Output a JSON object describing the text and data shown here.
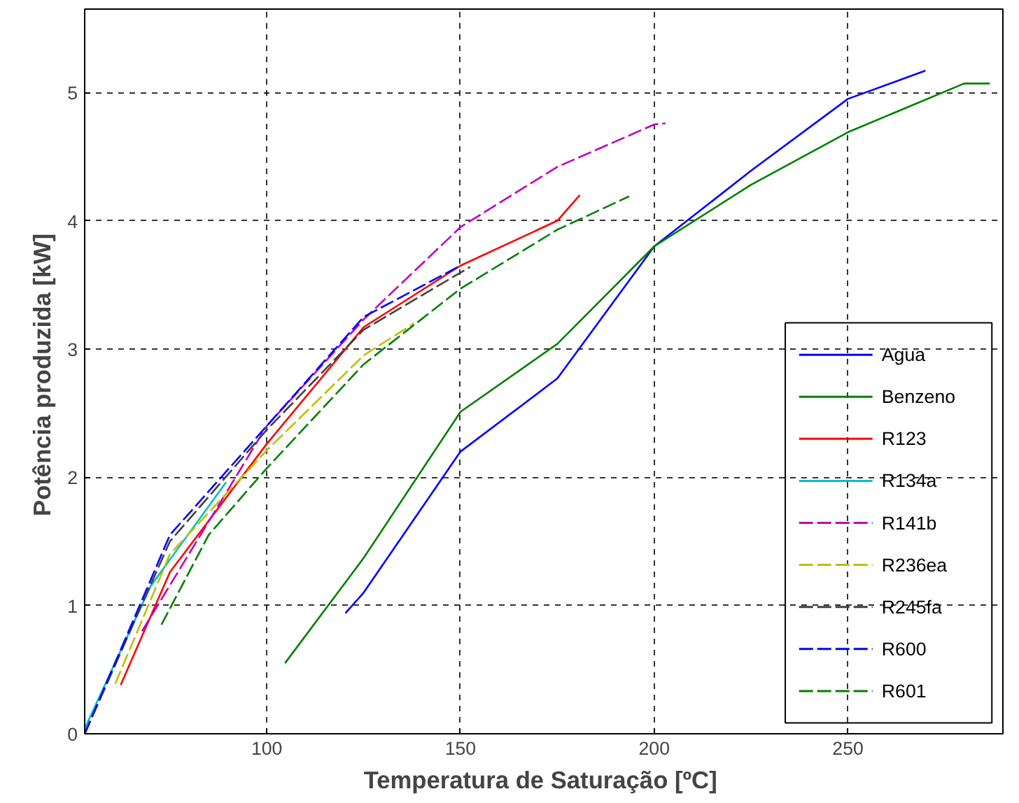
{
  "chart_data": {
    "type": "line",
    "xlabel": "Temperatura de Saturação  [ºC]",
    "ylabel": "Potência produzida  [kW]",
    "xlim": [
      53,
      290
    ],
    "ylim": [
      0,
      5.65
    ],
    "xticks": [
      100,
      150,
      200,
      250
    ],
    "yticks": [
      0,
      1,
      2,
      3,
      4,
      5
    ],
    "grid": true,
    "legend": "bottom right",
    "series": [
      {
        "name": "Agua",
        "color": "#0000ff",
        "line_style": "solid",
        "x": [
          120.3,
          125,
          150,
          175,
          200,
          225,
          250,
          270
        ],
        "values": [
          0.94,
          1.1,
          2.2,
          2.77,
          3.8,
          4.39,
          4.95,
          5.17
        ]
      },
      {
        "name": "Benzeno",
        "color": "#008000",
        "line_style": "solid",
        "x": [
          104.7,
          125,
          150,
          175,
          200,
          225,
          250,
          280,
          286.6
        ],
        "values": [
          0.55,
          1.37,
          2.51,
          3.04,
          3.8,
          4.28,
          4.69,
          5.07,
          5.07
        ]
      },
      {
        "name": "R123",
        "color": "#ff0000",
        "line_style": "solid",
        "x": [
          62.3,
          75,
          100,
          125,
          150,
          175,
          180.8
        ],
        "values": [
          0.38,
          1.26,
          2.26,
          3.17,
          3.65,
          4.0,
          4.2
        ]
      },
      {
        "name": "R134a",
        "color": "#00bfbf",
        "line_style": "solid",
        "x": [
          53,
          70,
          89.5
        ],
        "values": [
          0.04,
          1.15,
          1.96
        ]
      },
      {
        "name": "R141b",
        "color": "#bf00bf",
        "line_style": "dashed",
        "x": [
          67.8,
          100,
          125,
          150,
          175,
          200,
          202.9
        ],
        "values": [
          0.8,
          2.4,
          3.23,
          3.95,
          4.42,
          4.75,
          4.76
        ]
      },
      {
        "name": "R236ea",
        "color": "#bfbf00",
        "line_style": "dashed",
        "x": [
          60.9,
          75,
          100,
          125,
          138
        ],
        "values": [
          0.39,
          1.4,
          2.21,
          2.95,
          3.2
        ]
      },
      {
        "name": "R245fa",
        "color": "#404040",
        "line_style": "dashed",
        "x": [
          53,
          75,
          100,
          125,
          152.5
        ],
        "values": [
          0.0,
          1.5,
          2.37,
          3.15,
          3.64
        ]
      },
      {
        "name": "R600",
        "color": "#0000ff",
        "line_style": "dashed",
        "x": [
          53,
          75,
          100,
          125,
          150
        ],
        "values": [
          0.0,
          1.55,
          2.4,
          3.25,
          3.65
        ]
      },
      {
        "name": "R601",
        "color": "#008000",
        "line_style": "dashed",
        "x": [
          72.8,
          85,
          100,
          125,
          150,
          175,
          193.5
        ],
        "values": [
          0.85,
          1.55,
          2.07,
          2.88,
          3.47,
          3.93,
          4.19
        ]
      }
    ]
  }
}
